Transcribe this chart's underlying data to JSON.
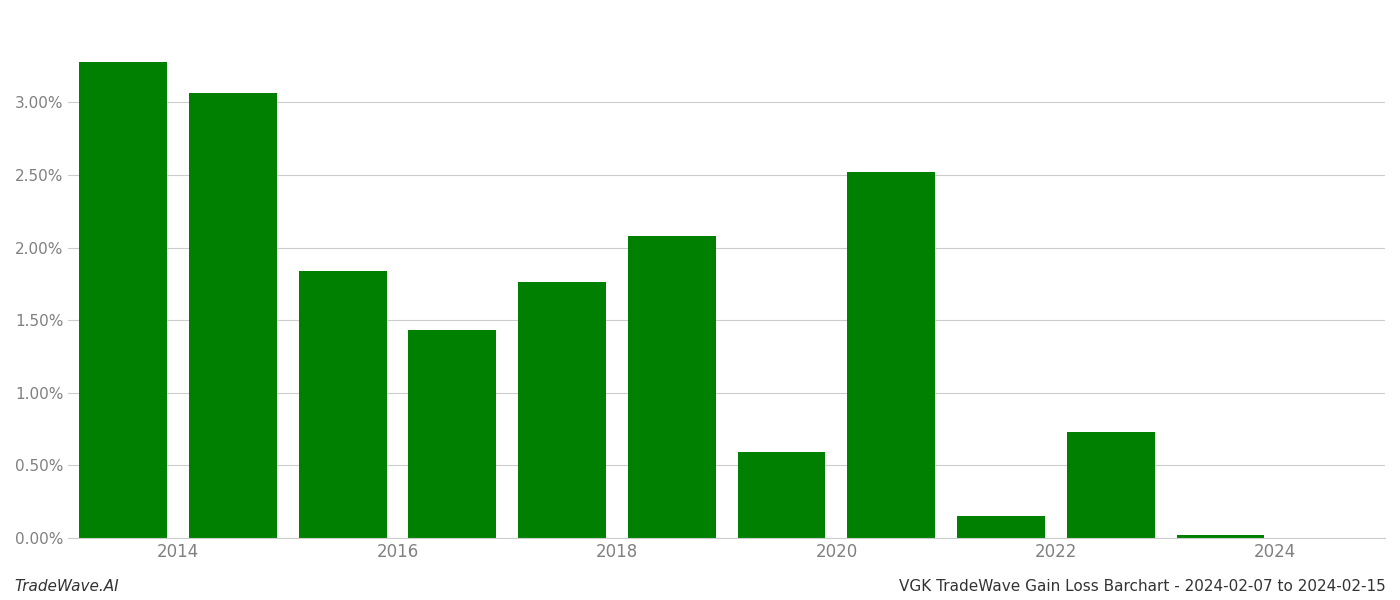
{
  "years": [
    2013,
    2014,
    2015,
    2016,
    2017,
    2018,
    2019,
    2020,
    2021,
    2022,
    2023
  ],
  "values": [
    0.0328,
    0.0306,
    0.0184,
    0.0143,
    0.0176,
    0.0208,
    0.0059,
    0.0252,
    0.0015,
    0.0073,
    0.0002
  ],
  "bar_color": "#008000",
  "background_color": "#ffffff",
  "grid_color": "#cccccc",
  "ylabel_color": "#808080",
  "xlabel_color": "#808080",
  "footer_left": "TradeWave.AI",
  "footer_right": "VGK TradeWave Gain Loss Barchart - 2024-02-07 to 2024-02-15",
  "ylim": [
    0,
    0.036
  ],
  "yticks": [
    0.0,
    0.005,
    0.01,
    0.015,
    0.02,
    0.025,
    0.03
  ],
  "xtick_positions": [
    2013.5,
    2015.5,
    2017.5,
    2019.5,
    2021.5,
    2023.5
  ],
  "xtick_labels": [
    "2014",
    "2016",
    "2018",
    "2020",
    "2022",
    "2024"
  ],
  "bar_width": 0.8,
  "xlim": [
    2012.5,
    2024.5
  ],
  "figsize": [
    14.0,
    6.0
  ],
  "dpi": 100
}
